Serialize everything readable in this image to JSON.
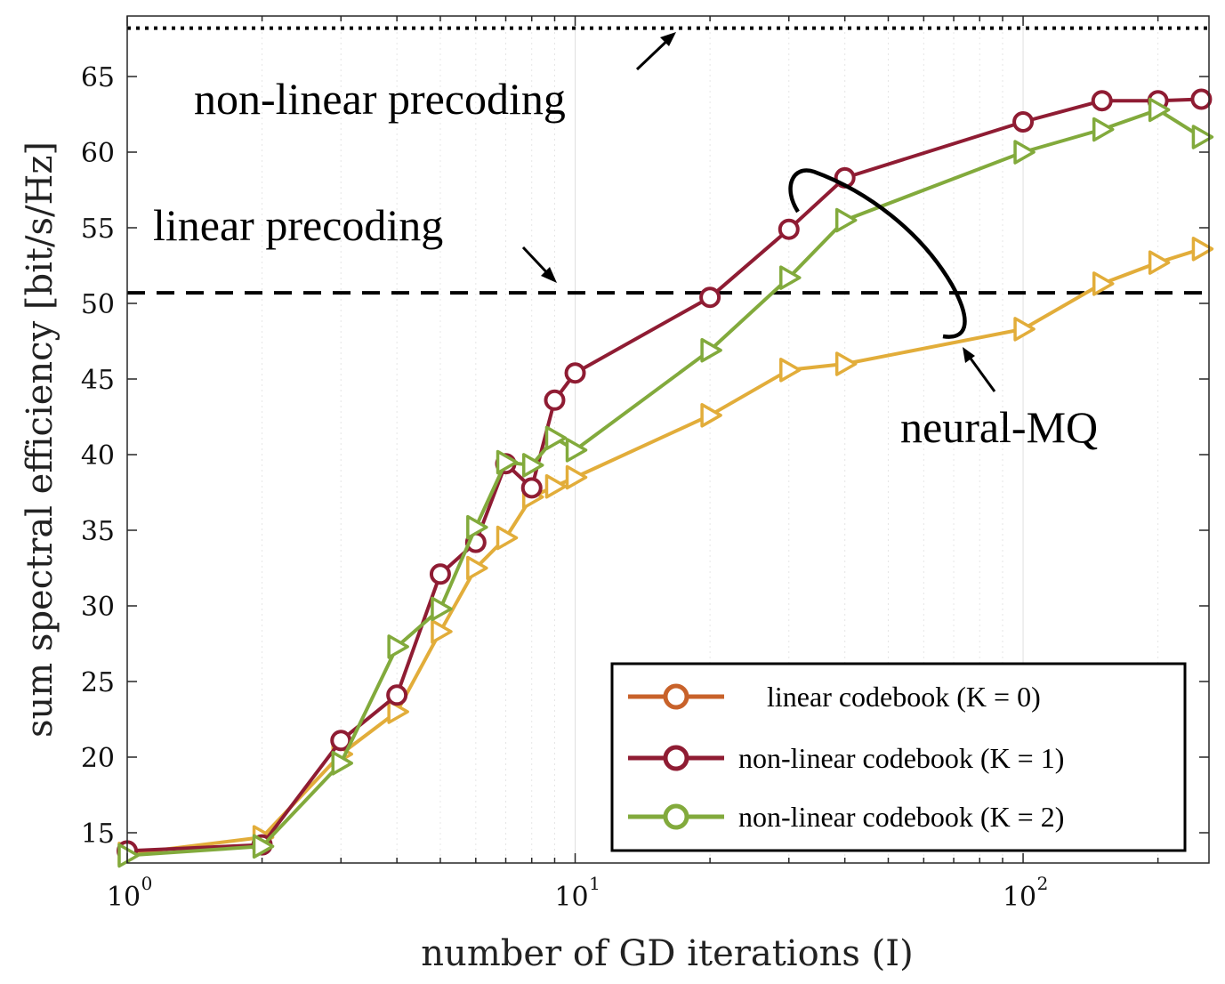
{
  "chart_data": {
    "type": "line",
    "xscale": "log",
    "xlim": [
      1,
      260
    ],
    "ylim": [
      13,
      69
    ],
    "xlabel": "number of GD iterations (I)",
    "ylabel": "sum spectral efficiency [bit/s/Hz]",
    "grid": true,
    "x_ticks": [
      {
        "value": 1,
        "base": "10",
        "exp": "0"
      },
      {
        "value": 10,
        "base": "10",
        "exp": "1"
      },
      {
        "value": 100,
        "base": "10",
        "exp": "2"
      }
    ],
    "y_ticks": [
      "15",
      "20",
      "25",
      "30",
      "35",
      "40",
      "45",
      "50",
      "55",
      "60",
      "65"
    ],
    "reference_lines": [
      {
        "name": "non-linear precoding",
        "y": 68.2,
        "style": "dotted",
        "color": "#000000"
      },
      {
        "name": "linear precoding",
        "y": 50.7,
        "style": "dashed",
        "color": "#000000"
      }
    ],
    "series": [
      {
        "name": "linear codebook (K = 0)",
        "color": "#e2ad3a",
        "marker": "triangle-right",
        "x": [
          1,
          2,
          3,
          4,
          5,
          6,
          7,
          8,
          9,
          10,
          20,
          30,
          40,
          100,
          150,
          200,
          250
        ],
        "y": [
          13.6,
          14.7,
          20.2,
          23.0,
          28.3,
          32.5,
          34.5,
          37.2,
          37.9,
          38.5,
          42.6,
          45.6,
          46.0,
          48.3,
          51.3,
          52.7,
          53.6
        ]
      },
      {
        "name": "non-linear codebook (K = 1)",
        "color": "#8f1c33",
        "marker": "circle",
        "x": [
          1,
          2,
          3,
          4,
          5,
          6,
          7,
          8,
          9,
          10,
          20,
          30,
          40,
          100,
          150,
          200,
          250
        ],
        "y": [
          13.8,
          14.2,
          21.1,
          24.1,
          32.1,
          34.2,
          39.4,
          37.8,
          43.6,
          45.4,
          50.4,
          54.9,
          58.3,
          62.0,
          63.4,
          63.4,
          63.5
        ]
      },
      {
        "name": "non-linear codebook (K = 2)",
        "color": "#82aa3c",
        "marker": "triangle-right",
        "x": [
          1,
          2,
          3,
          4,
          5,
          6,
          7,
          8,
          9,
          10,
          20,
          30,
          40,
          100,
          150,
          200,
          250
        ],
        "y": [
          13.5,
          14.1,
          19.6,
          27.3,
          29.8,
          35.2,
          39.5,
          39.3,
          41.1,
          40.3,
          46.9,
          51.7,
          55.5,
          60.0,
          61.5,
          62.8,
          61.0
        ]
      }
    ],
    "annotations": [
      "non-linear precoding",
      "linear precoding",
      "neural-MQ"
    ],
    "legend": {
      "position": "bottom-right",
      "entries": [
        {
          "label": "linear codebook (K = 0)",
          "color": "#c8622a"
        },
        {
          "label": "non-linear codebook (K = 1)",
          "color": "#8f1c33"
        },
        {
          "label": "non-linear codebook (K = 2)",
          "color": "#82aa3c"
        }
      ]
    }
  }
}
